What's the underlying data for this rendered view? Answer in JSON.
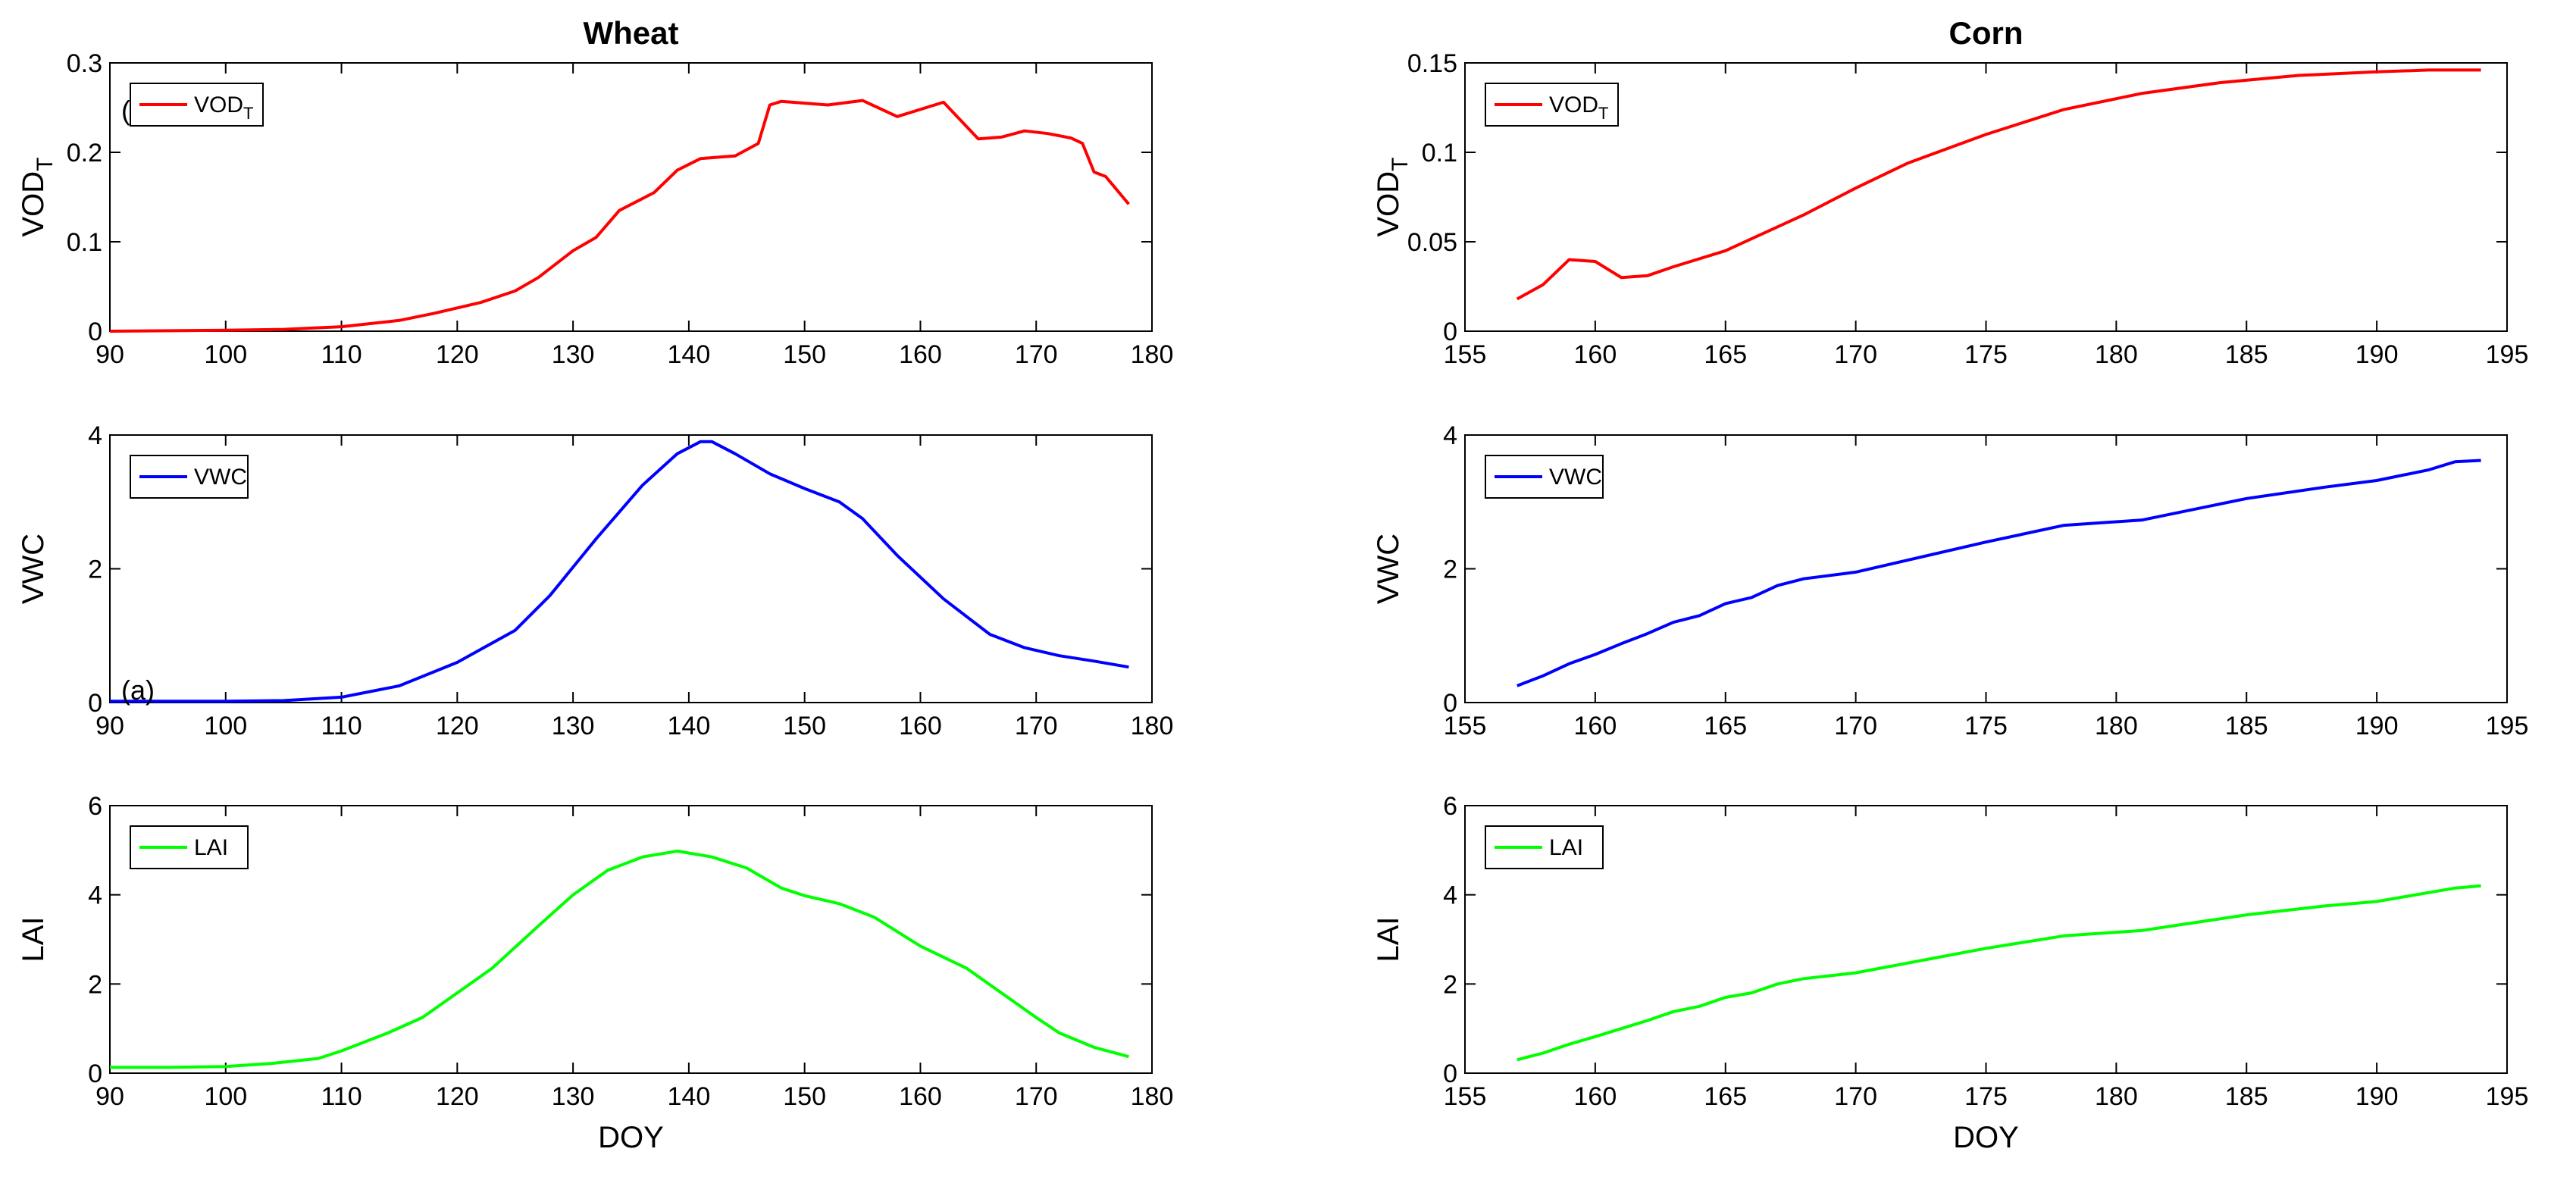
{
  "chart_data": [
    {
      "id": "wheat-vodt",
      "type": "line",
      "title": "Wheat",
      "xlabel": "",
      "ylabel": "VOD",
      "ylabel_sub": "T",
      "xlim": [
        90,
        180
      ],
      "ylim": [
        0,
        0.3
      ],
      "xticks": [
        90,
        100,
        110,
        120,
        130,
        140,
        150,
        160,
        170,
        180
      ],
      "yticks": [
        "0",
        "0.1",
        "0.2",
        "0.3"
      ],
      "grid": false,
      "legend_position": "top-left",
      "annotation": "(",
      "series": [
        {
          "name": "VOD",
          "name_sub": "T",
          "color": "#ff0000",
          "x": [
            90,
            100,
            105,
            110,
            115,
            118,
            122,
            125,
            127,
            130,
            132,
            134,
            137,
            139,
            141,
            143,
            144,
            146,
            147,
            148,
            150,
            152,
            155,
            158,
            162,
            165,
            167,
            169,
            171,
            173,
            174,
            175,
            176,
            178
          ],
          "y": [
            0,
            0.001,
            0.002,
            0.005,
            0.012,
            0.02,
            0.032,
            0.045,
            0.06,
            0.09,
            0.105,
            0.135,
            0.155,
            0.18,
            0.193,
            0.195,
            0.196,
            0.21,
            0.253,
            0.257,
            0.255,
            0.253,
            0.258,
            0.24,
            0.256,
            0.215,
            0.217,
            0.224,
            0.221,
            0.216,
            0.21,
            0.178,
            0.173,
            0.142
          ]
        }
      ]
    },
    {
      "id": "wheat-vwc",
      "type": "line",
      "title": "",
      "xlabel": "",
      "ylabel": "VWC",
      "xlim": [
        90,
        180
      ],
      "ylim": [
        0,
        4
      ],
      "xticks": [
        90,
        100,
        110,
        120,
        130,
        140,
        150,
        160,
        170,
        180
      ],
      "yticks": [
        "0",
        "2",
        "4"
      ],
      "grid": false,
      "legend_position": "top-left",
      "annotation": "(a)",
      "series": [
        {
          "name": "VWC",
          "color": "#0000ff",
          "x": [
            90,
            100,
            105,
            110,
            115,
            120,
            125,
            128,
            132,
            136,
            139,
            141,
            142,
            144,
            147,
            150,
            153,
            155,
            158,
            162,
            166,
            169,
            172,
            175,
            178
          ],
          "y": [
            0.02,
            0.02,
            0.03,
            0.08,
            0.25,
            0.6,
            1.08,
            1.6,
            2.45,
            3.25,
            3.72,
            3.9,
            3.9,
            3.72,
            3.42,
            3.2,
            3.0,
            2.75,
            2.2,
            1.55,
            1.02,
            0.82,
            0.7,
            0.62,
            0.53
          ]
        }
      ]
    },
    {
      "id": "wheat-lai",
      "type": "line",
      "title": "",
      "xlabel": "DOY",
      "ylabel": "LAI",
      "xlim": [
        90,
        180
      ],
      "ylim": [
        0,
        6
      ],
      "xticks": [
        90,
        100,
        110,
        120,
        130,
        140,
        150,
        160,
        170,
        180
      ],
      "yticks": [
        "0",
        "2",
        "4",
        "6"
      ],
      "grid": false,
      "legend_position": "top-left",
      "series": [
        {
          "name": "LAI",
          "color": "#00ff00",
          "x": [
            90,
            95,
            100,
            104,
            108,
            110,
            114,
            117,
            120,
            123,
            127,
            130,
            133,
            136,
            139,
            142,
            145,
            148,
            150,
            153,
            156,
            160,
            164,
            167,
            170,
            172,
            175,
            178
          ],
          "y": [
            0.13,
            0.13,
            0.15,
            0.22,
            0.33,
            0.5,
            0.9,
            1.25,
            1.8,
            2.35,
            3.3,
            4.0,
            4.55,
            4.85,
            4.98,
            4.85,
            4.6,
            4.15,
            3.98,
            3.8,
            3.5,
            2.85,
            2.35,
            1.8,
            1.25,
            0.9,
            0.58,
            0.37
          ]
        }
      ]
    },
    {
      "id": "corn-vodt",
      "type": "line",
      "title": "Corn",
      "xlabel": "",
      "ylabel": "VOD",
      "ylabel_sub": "T",
      "xlim": [
        155,
        195
      ],
      "ylim": [
        0,
        0.15
      ],
      "xticks": [
        155,
        160,
        165,
        170,
        175,
        180,
        185,
        190,
        195
      ],
      "yticks": [
        "0",
        "0.05",
        "0.1",
        "0.15"
      ],
      "grid": false,
      "legend_position": "top-left",
      "series": [
        {
          "name": "VOD",
          "name_sub": "T",
          "color": "#ff0000",
          "x": [
            157,
            158,
            159,
            160,
            161,
            162,
            163,
            165,
            168,
            170,
            172,
            175,
            178,
            181,
            184,
            187,
            190,
            192,
            194
          ],
          "y": [
            0.018,
            0.026,
            0.04,
            0.039,
            0.03,
            0.031,
            0.036,
            0.045,
            0.065,
            0.08,
            0.094,
            0.11,
            0.124,
            0.133,
            0.139,
            0.143,
            0.145,
            0.146,
            0.146
          ]
        }
      ]
    },
    {
      "id": "corn-vwc",
      "type": "line",
      "title": "",
      "xlabel": "",
      "ylabel": "VWC",
      "xlim": [
        155,
        195
      ],
      "ylim": [
        0,
        4
      ],
      "xticks": [
        155,
        160,
        165,
        170,
        175,
        180,
        185,
        190,
        195
      ],
      "yticks": [
        "0",
        "2",
        "4"
      ],
      "grid": false,
      "legend_position": "top-left",
      "series": [
        {
          "name": "VWC",
          "color": "#0000ff",
          "x": [
            157,
            158,
            159,
            160,
            161,
            162,
            163,
            164,
            165,
            166,
            167,
            168,
            170,
            175,
            178,
            181,
            185,
            188,
            190,
            192,
            193,
            194
          ],
          "y": [
            0.25,
            0.4,
            0.58,
            0.72,
            0.88,
            1.03,
            1.2,
            1.3,
            1.48,
            1.57,
            1.75,
            1.85,
            1.95,
            2.4,
            2.65,
            2.73,
            3.05,
            3.22,
            3.32,
            3.48,
            3.6,
            3.62
          ]
        }
      ]
    },
    {
      "id": "corn-lai",
      "type": "line",
      "title": "",
      "xlabel": "DOY",
      "ylabel": "LAI",
      "xlim": [
        155,
        195
      ],
      "ylim": [
        0,
        6
      ],
      "xticks": [
        155,
        160,
        165,
        170,
        175,
        180,
        185,
        190,
        195
      ],
      "yticks": [
        "0",
        "2",
        "4",
        "6"
      ],
      "grid": false,
      "legend_position": "top-left",
      "series": [
        {
          "name": "LAI",
          "color": "#00ff00",
          "x": [
            157,
            158,
            159,
            160,
            161,
            162,
            163,
            164,
            165,
            166,
            167,
            168,
            170,
            175,
            178,
            181,
            185,
            188,
            190,
            192,
            193,
            194
          ],
          "y": [
            0.3,
            0.45,
            0.65,
            0.82,
            1.0,
            1.18,
            1.38,
            1.5,
            1.7,
            1.8,
            2.0,
            2.12,
            2.25,
            2.8,
            3.08,
            3.2,
            3.55,
            3.75,
            3.85,
            4.05,
            4.15,
            4.2
          ]
        }
      ]
    }
  ]
}
